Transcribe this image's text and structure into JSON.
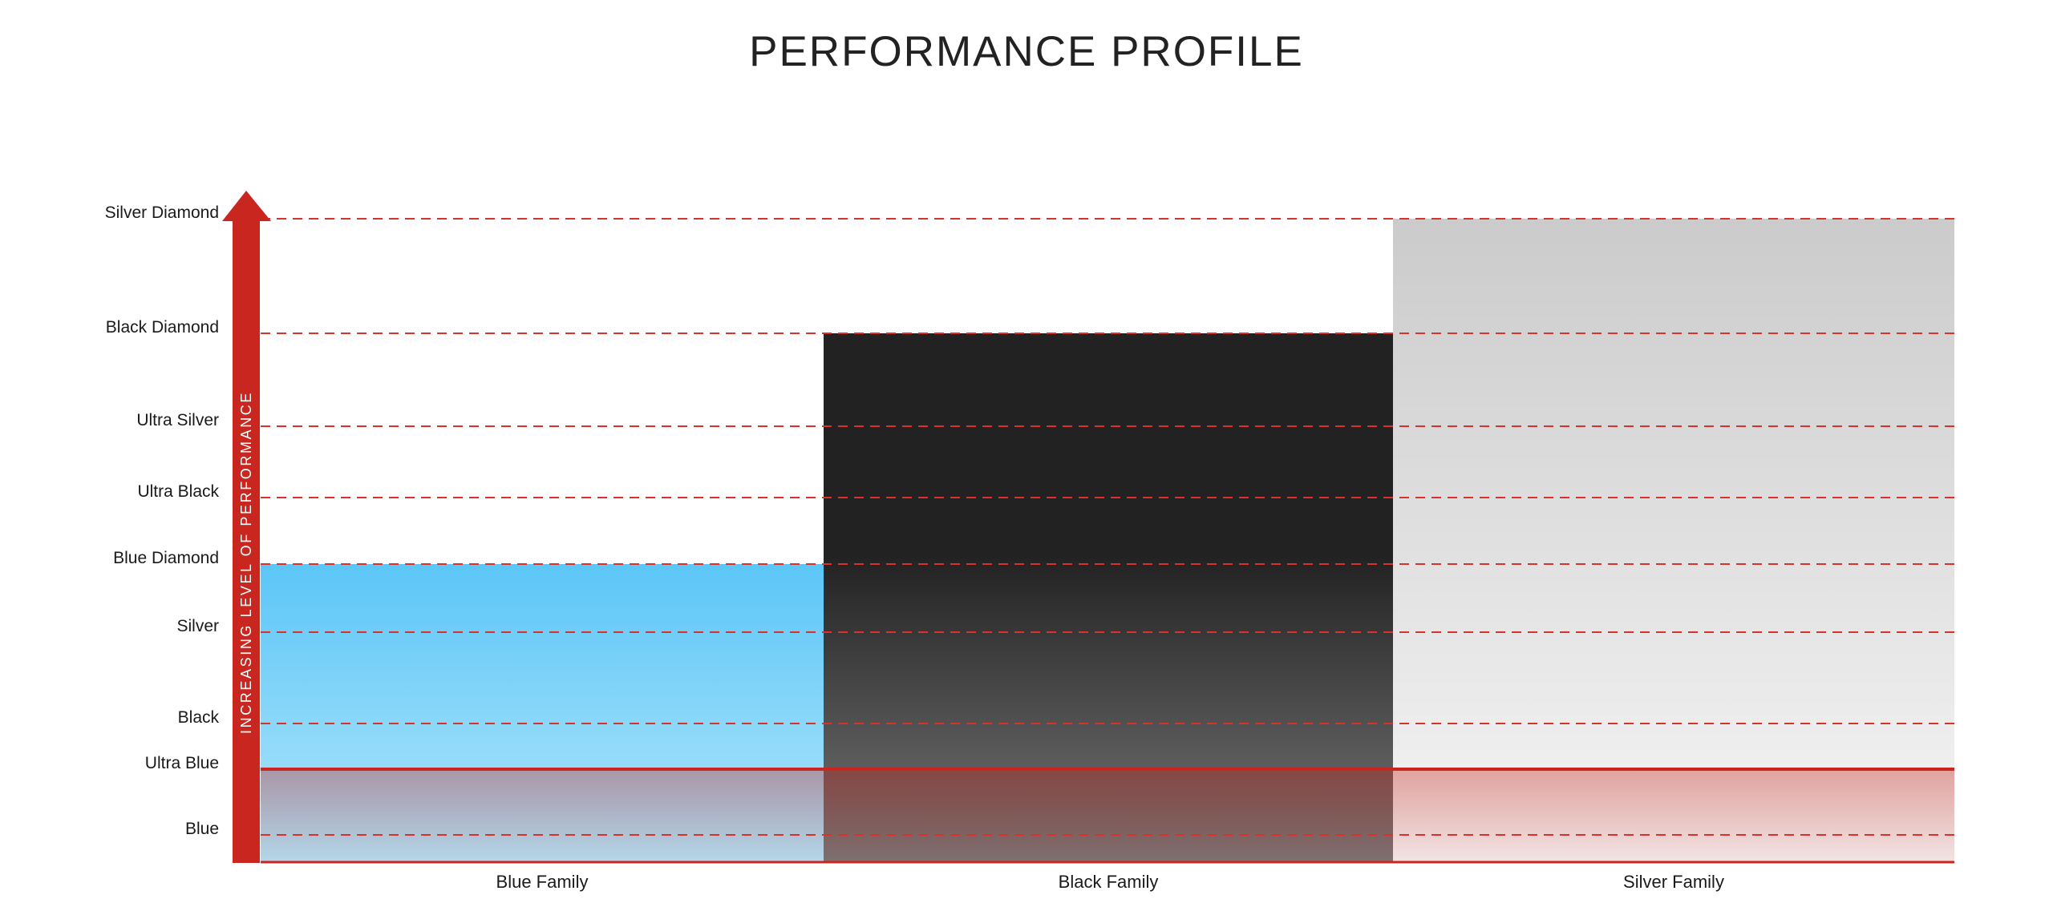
{
  "chart_data": {
    "type": "bar",
    "title": "PERFORMANCE PROFILE",
    "ylabel": "INCREASING LEVEL OF PERFORMANCE",
    "xlabel": "",
    "y_levels": [
      "Blue",
      "Ultra Blue",
      "Black",
      "Silver",
      "Blue Diamond",
      "Ultra Black",
      "Ultra Silver",
      "Black Diamond",
      "Silver Diamond"
    ],
    "categories": [
      "Blue Family",
      "Black Family",
      "Silver Family"
    ],
    "values": [
      "Blue Diamond",
      "Black Diamond",
      "Silver Diamond"
    ],
    "threshold": "Ultra Blue",
    "grid": true,
    "colors": {
      "axis": "#c8261e",
      "grid": "#d9322a",
      "blue_family_top": "#5bc6f7",
      "blue_family_bottom": "#b3e6fb",
      "black_family_top": "#222222",
      "black_family_bottom": "#777777",
      "silver_family_top": "#cbcbcb",
      "silver_family_bottom": "#f5f5f5",
      "below_threshold_tint": "#c8261e"
    }
  }
}
